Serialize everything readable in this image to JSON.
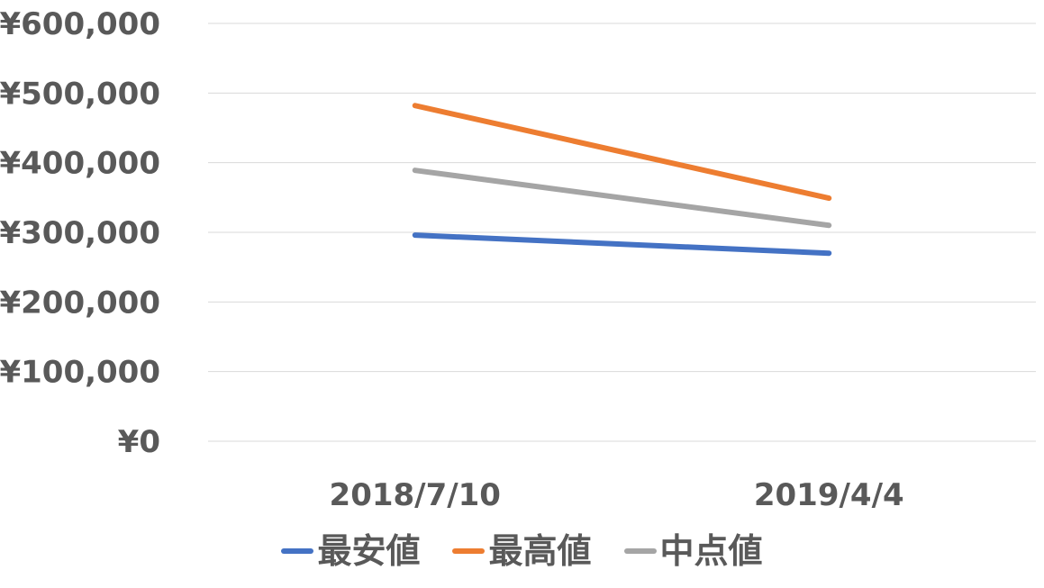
{
  "chart_data": {
    "type": "line",
    "title": "",
    "xlabel": "",
    "ylabel": "",
    "categories": [
      "2018/7/10",
      "2019/4/4"
    ],
    "ylim": [
      0,
      600000
    ],
    "yticks": [
      0,
      100000,
      200000,
      300000,
      400000,
      500000,
      600000
    ],
    "ytick_labels": [
      "¥0",
      "¥100,000",
      "¥200,000",
      "¥300,000",
      "¥400,000",
      "¥500,000",
      "¥600,000"
    ],
    "grid": true,
    "legend_position": "bottom",
    "series": [
      {
        "name": "最安値",
        "color": "#4472c4",
        "values": [
          296000,
          270000
        ]
      },
      {
        "name": "最高値",
        "color": "#ed7d31",
        "values": [
          482000,
          349000
        ]
      },
      {
        "name": "中点値",
        "color": "#a5a5a5",
        "values": [
          389000,
          310000
        ]
      }
    ]
  }
}
